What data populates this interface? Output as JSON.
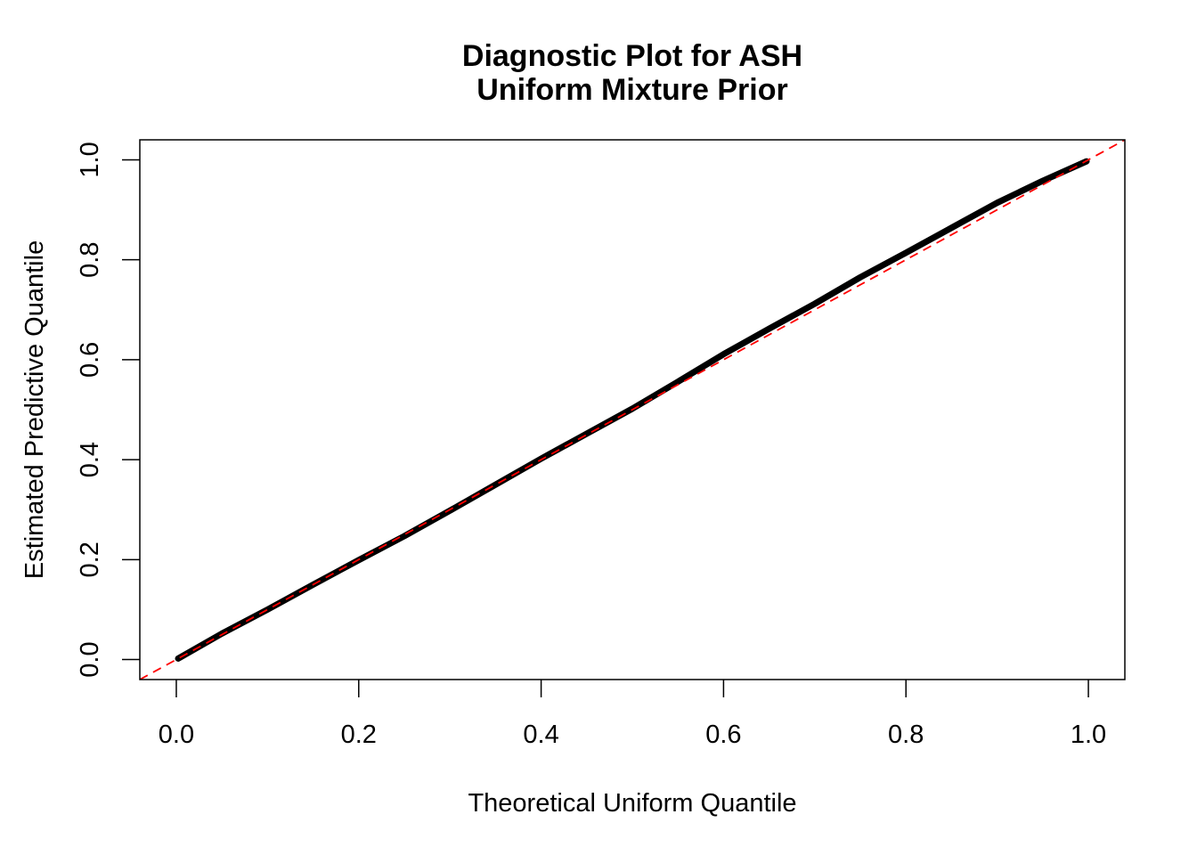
{
  "chart_data": {
    "type": "line",
    "title": "Diagnostic Plot for ASH",
    "subtitle": "Uniform Mixture Prior",
    "xlabel": "Theoretical Uniform Quantile",
    "ylabel": "Estimated Predictive Quantile",
    "xlim": [
      -0.04,
      1.04
    ],
    "ylim": [
      -0.04,
      1.04
    ],
    "xticks": [
      "0.0",
      "0.2",
      "0.4",
      "0.6",
      "0.8",
      "1.0"
    ],
    "yticks": [
      "0.0",
      "0.2",
      "0.4",
      "0.6",
      "0.8",
      "1.0"
    ],
    "grid": false,
    "series": [
      {
        "color": "#000000",
        "x": [
          0.002,
          0.05,
          0.1,
          0.15,
          0.2,
          0.25,
          0.3,
          0.35,
          0.4,
          0.45,
          0.5,
          0.55,
          0.6,
          0.65,
          0.7,
          0.75,
          0.8,
          0.85,
          0.9,
          0.95,
          0.998
        ],
        "y": [
          0.002,
          0.052,
          0.1,
          0.15,
          0.199,
          0.247,
          0.298,
          0.35,
          0.402,
          0.452,
          0.502,
          0.556,
          0.611,
          0.662,
          0.712,
          0.765,
          0.814,
          0.864,
          0.914,
          0.958,
          0.997
        ]
      }
    ],
    "reference_line": {
      "intercept": 0,
      "slope": 1,
      "color": "#ff0000",
      "style": "dashed"
    }
  }
}
